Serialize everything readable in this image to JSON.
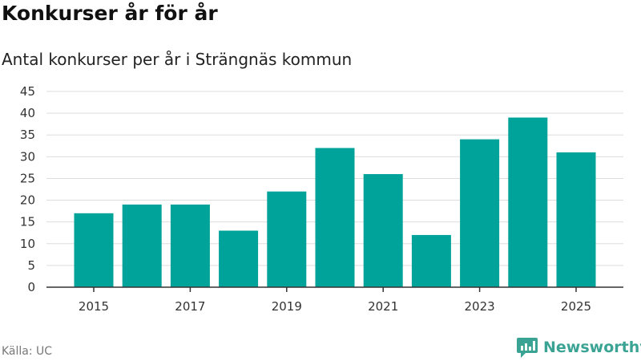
{
  "header": {
    "title": "Konkurser år för år",
    "subtitle": "Antal konkurser per år i Strängnäs kommun"
  },
  "footer": {
    "source": "Källa: UC",
    "brand_name": "Newsworthy",
    "brand_icon": "newsworthy-logo-icon"
  },
  "colors": {
    "bar": "#00a39a",
    "grid": "#dddddd",
    "axis": "#333333",
    "brand": "#3aa394"
  },
  "chart_data": {
    "type": "bar",
    "title": "Konkurser år för år",
    "subtitle": "Antal konkurser per år i Strängnäs kommun",
    "xlabel": "",
    "ylabel": "",
    "categories": [
      2015,
      2016,
      2017,
      2018,
      2019,
      2020,
      2021,
      2022,
      2023,
      2024,
      2025
    ],
    "values": [
      17,
      19,
      19,
      13,
      22,
      32,
      26,
      12,
      34,
      39,
      31
    ],
    "ylim": [
      0,
      45
    ],
    "yticks": [
      0,
      5,
      10,
      15,
      20,
      25,
      30,
      35,
      40,
      45
    ],
    "xticks": [
      2015,
      2017,
      2019,
      2021,
      2023,
      2025
    ],
    "grid": true,
    "legend": "none"
  }
}
